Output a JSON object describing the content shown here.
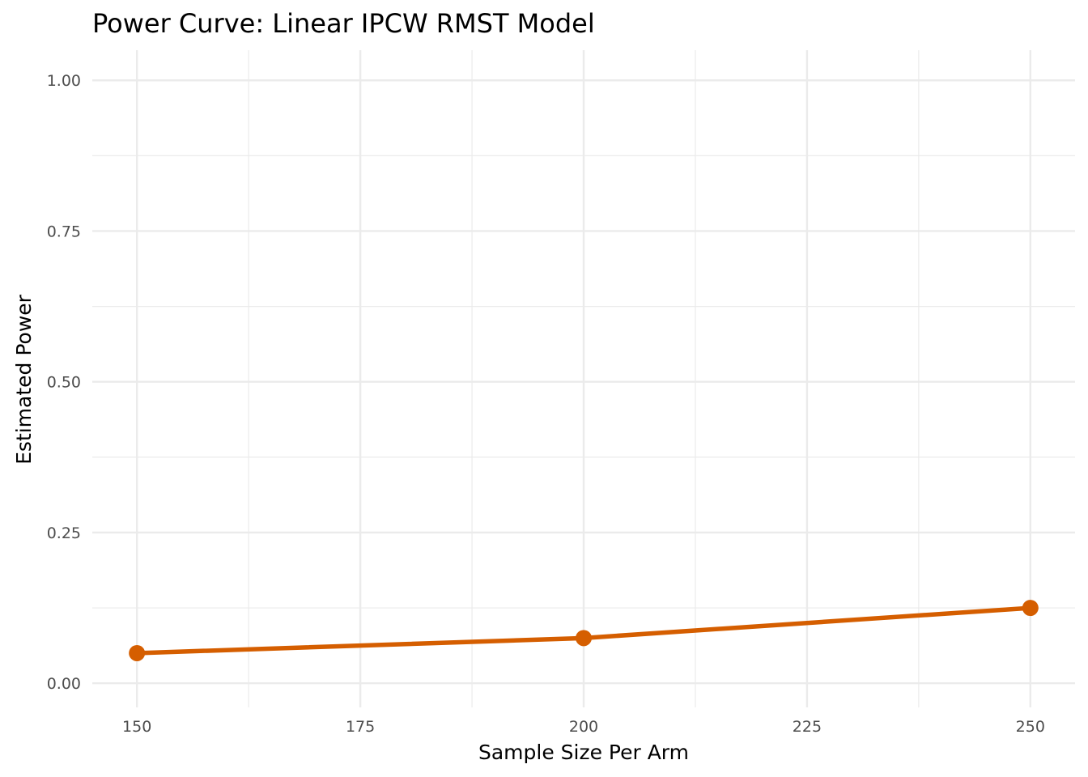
{
  "chart_data": {
    "type": "line",
    "title": "Power Curve: Linear IPCW RMST Model",
    "xlabel": "Sample Size Per Arm",
    "ylabel": "Estimated Power",
    "x": [
      150,
      200,
      250
    ],
    "series": [
      {
        "values": [
          0.05,
          0.075,
          0.125
        ]
      }
    ],
    "xlim": [
      145,
      255
    ],
    "ylim": [
      -0.04,
      1.05
    ],
    "x_ticks": [
      "150",
      "175",
      "200",
      "225",
      "250"
    ],
    "y_ticks": [
      "0.00",
      "0.25",
      "0.50",
      "0.75",
      "1.00"
    ],
    "grid": true,
    "line_color": "#D55E00",
    "grid_color": "#EBEBEB"
  }
}
